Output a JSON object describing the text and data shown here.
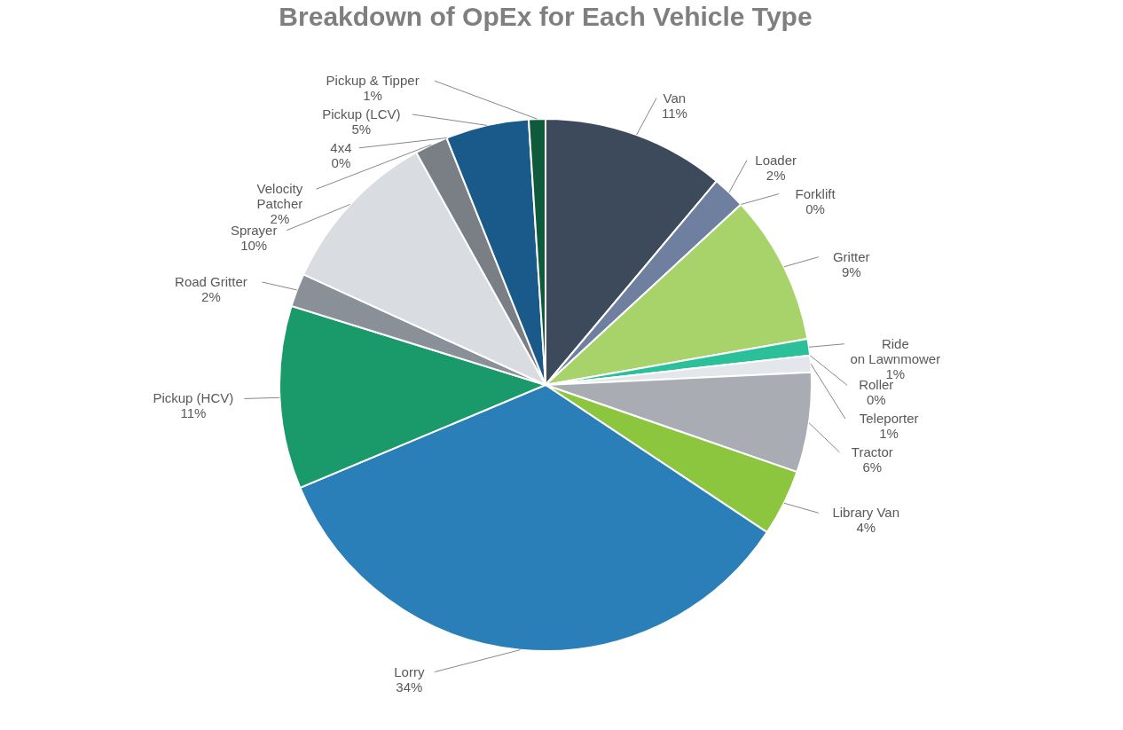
{
  "chart_data": {
    "type": "pie",
    "title": "Breakdown of OpEx for Each Vehicle Type",
    "categories": [
      "Van",
      "Loader",
      "Forklift",
      "Gritter",
      "Ride on Lawnmower",
      "Roller",
      "Teleporter",
      "Tractor",
      "Library Van",
      "Lorry",
      "Pickup (HCV)",
      "Road Gritter",
      "Sprayer",
      "Velocity Patcher",
      "4x4",
      "Pickup (LCV)",
      "Pickup & Tipper"
    ],
    "values": [
      11,
      2,
      0,
      9,
      1,
      0,
      1,
      6,
      4,
      34,
      11,
      2,
      10,
      2,
      0,
      5,
      1
    ],
    "value_labels": [
      "11%",
      "2%",
      "0%",
      "9%",
      "1%",
      "0%",
      "1%",
      "6%",
      "4%",
      "34%",
      "11%",
      "2%",
      "10%",
      "2%",
      "0%",
      "5%",
      "1%"
    ],
    "colors": [
      "#3d4a5c",
      "#6f7fa0",
      "#3f4a56",
      "#a8d36a",
      "#2bbf9a",
      "#a0a4a8",
      "#e3e6ea",
      "#a9adb3",
      "#8cc63f",
      "#2a7fb8",
      "#1a9a6a",
      "#8a9098",
      "#d9dce1",
      "#7a7f86",
      "#9bbf3a",
      "#1a5a8a",
      "#0f5a3a"
    ],
    "legend": false
  }
}
